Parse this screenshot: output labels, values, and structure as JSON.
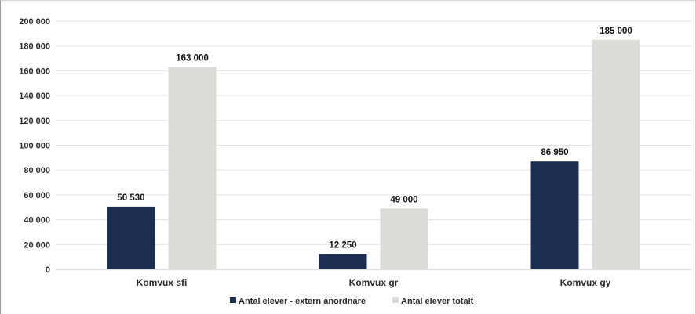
{
  "chart_data": {
    "type": "bar",
    "title": "",
    "xlabel": "",
    "ylabel": "",
    "categories": [
      "Komvux sfi",
      "Komvux gr",
      "Komvux gy"
    ],
    "series": [
      {
        "name": "Antal elever - extern anordnare",
        "color": "#1c2f52",
        "values": [
          50530,
          12250,
          86950
        ],
        "labels": [
          "50 530",
          "12 250",
          "86 950"
        ]
      },
      {
        "name": "Antal elever totalt",
        "color": "#dcdcd8",
        "values": [
          163000,
          49000,
          185000
        ],
        "labels": [
          "163 000",
          "49 000",
          "185 000"
        ]
      }
    ],
    "ylim": [
      0,
      200000
    ],
    "yticks": [
      0,
      20000,
      40000,
      60000,
      80000,
      100000,
      120000,
      140000,
      160000,
      180000,
      200000
    ],
    "ytick_labels": [
      "0",
      "20 000",
      "40 000",
      "60 000",
      "80 000",
      "100 000",
      "120 000",
      "140 000",
      "160 000",
      "180 000",
      "200 000"
    ],
    "grid": true,
    "legend": "bottom"
  }
}
